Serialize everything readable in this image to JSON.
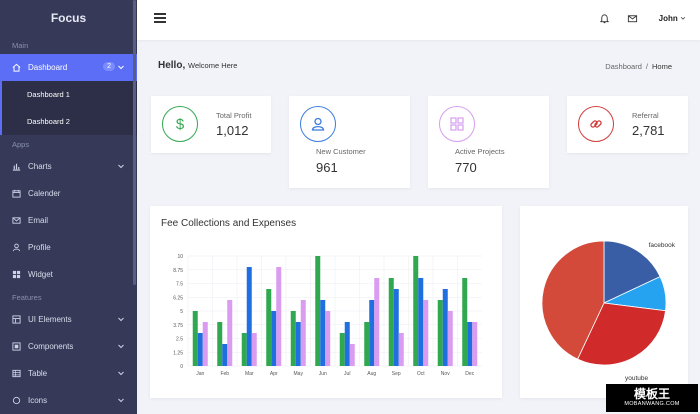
{
  "sidebar": {
    "brand": "Focus",
    "sections": {
      "main": "Main",
      "apps": "Apps",
      "features": "Features"
    },
    "dashboard": {
      "label": "Dashboard",
      "badge": "2"
    },
    "dashboard_subitems": [
      "Dashboard 1",
      "Dashboard 2"
    ],
    "apps_items": [
      {
        "label": "Charts",
        "icon": "bar-chart-icon"
      },
      {
        "label": "Calender",
        "icon": "calendar-icon"
      },
      {
        "label": "Email",
        "icon": "mail-icon"
      },
      {
        "label": "Profile",
        "icon": "user-icon"
      },
      {
        "label": "Widget",
        "icon": "grid-icon"
      }
    ],
    "features_items": [
      {
        "label": "UI Elements",
        "icon": "layers-icon"
      },
      {
        "label": "Components",
        "icon": "components-icon"
      },
      {
        "label": "Table",
        "icon": "table-icon"
      },
      {
        "label": "Icons",
        "icon": "icons-icon"
      }
    ]
  },
  "header": {
    "user": "John"
  },
  "page": {
    "hello": "Hello,",
    "welcome": "Welcome Here",
    "breadcrumb": [
      "Dashboard",
      "Home"
    ]
  },
  "stats": [
    {
      "label": "Total Profit",
      "value": "1,012",
      "icon": "dollar-icon",
      "color": "#33a853"
    },
    {
      "label": "New Customer",
      "value": "961",
      "icon": "user-icon",
      "color": "#3b7ddd"
    },
    {
      "label": "Active Projects",
      "value": "770",
      "icon": "grid-icon",
      "color": "#d69ef0"
    },
    {
      "label": "Referral",
      "value": "2,781",
      "icon": "link-icon",
      "color": "#d33c3c"
    }
  ],
  "fee_chart": {
    "title": "Fee Collections and Expenses"
  },
  "chart_data": [
    {
      "type": "bar",
      "title": "Fee Collections and Expenses",
      "categories": [
        "Jan",
        "Feb",
        "Mar",
        "Apr",
        "May",
        "Jun",
        "Jul",
        "Aug",
        "Sep",
        "Oct",
        "Nov",
        "Dec"
      ],
      "series": [
        {
          "color": "#2fa84f",
          "values": [
            5,
            4,
            3,
            7,
            5,
            10,
            3,
            4,
            8,
            10,
            6,
            8
          ]
        },
        {
          "color": "#1f6fe0",
          "values": [
            3,
            2,
            9,
            5,
            4,
            6,
            4,
            6,
            7,
            8,
            7,
            4
          ]
        },
        {
          "color": "#d99cf0",
          "values": [
            4,
            6,
            3,
            9,
            6,
            5,
            2,
            8,
            3,
            6,
            5,
            4
          ]
        }
      ],
      "yticks": [
        "0",
        "1.25",
        "2.5",
        "3.75",
        "5",
        "6.25",
        "7.5",
        "8.75",
        "10"
      ],
      "ylim": [
        0,
        10
      ]
    },
    {
      "type": "pie",
      "labels": [
        "facebook",
        "youtube"
      ],
      "slices": [
        {
          "label": "facebook",
          "value": 18,
          "color": "#3a5ea6"
        },
        {
          "label": "",
          "value": 9,
          "color": "#26a3f0"
        },
        {
          "label": "youtube",
          "value": 30,
          "color": "#d12a2a"
        },
        {
          "label": "",
          "value": 43,
          "color": "#d44a3a"
        }
      ]
    }
  ],
  "colors": {
    "sidebar": "#363a58",
    "accent": "#5b6ef5"
  },
  "watermark": {
    "text": "模板王",
    "sub": "MOBANWANG.COM"
  }
}
